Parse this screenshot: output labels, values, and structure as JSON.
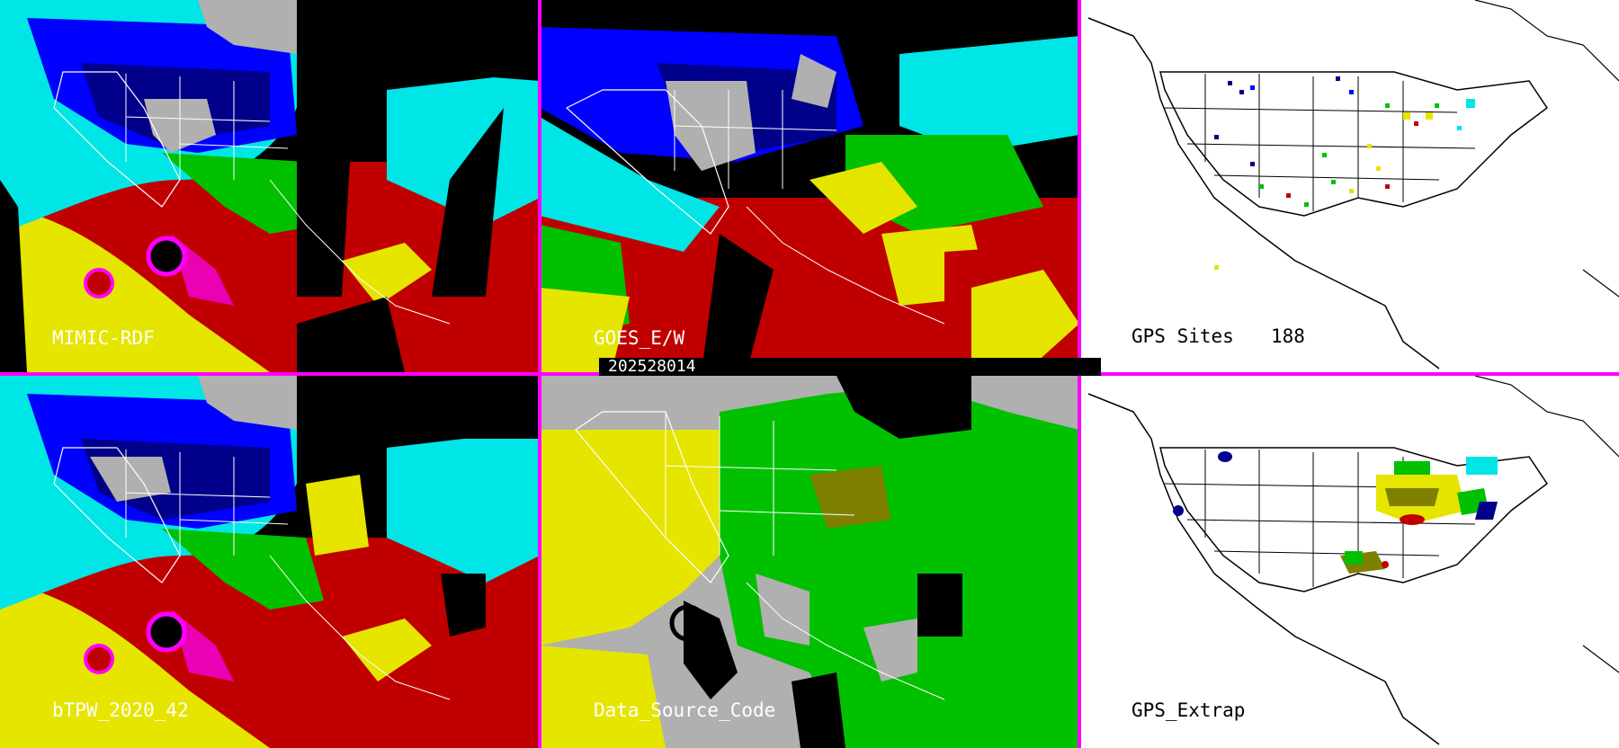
{
  "panels": [
    {
      "id": "mimic",
      "label": "MIMIC-RDF",
      "type": "imagery"
    },
    {
      "id": "goes",
      "label": "GOES_E/W",
      "type": "imagery"
    },
    {
      "id": "gps_sites",
      "label": "GPS Sites",
      "count": "188",
      "type": "station-map"
    },
    {
      "id": "btpw",
      "label": "bTPW_2020_42",
      "type": "imagery"
    },
    {
      "id": "dsc",
      "label": "Data_Source_Code",
      "type": "source-map"
    },
    {
      "id": "gps_extrap",
      "label": "GPS_Extrap",
      "type": "station-map"
    }
  ],
  "timestamp": "202528014",
  "colors": {
    "separator": "#ff00ff",
    "palette": [
      "#00008b",
      "#0000ff",
      "#00e5e5",
      "#00c000",
      "#e5e500",
      "#c00000",
      "#ff00ff",
      "#b0b0b0",
      "#000000"
    ]
  }
}
